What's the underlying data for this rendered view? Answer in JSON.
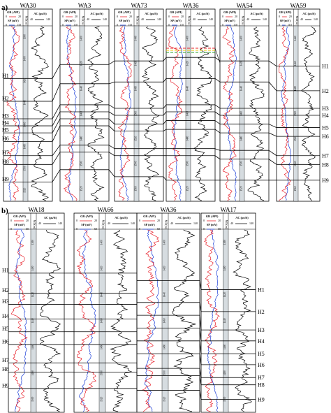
{
  "panels": [
    {
      "label": "a)",
      "header": {
        "gr": "GR (API)",
        "gr_range": [
          "0",
          "20"
        ],
        "sp": "SP (mV)",
        "sp_range": [
          "0",
          "110"
        ],
        "ac": "AC (μs/ft)",
        "ac_range": [
          "40",
          "140"
        ]
      },
      "wells": [
        {
          "name": "WA30",
          "depths": [
            "1380",
            "1400",
            "1420",
            "1440",
            "1460",
            "1480",
            "1500",
            "1520"
          ],
          "markers": [
            0.3,
            0.43,
            0.53,
            0.57,
            0.61,
            0.66,
            0.74,
            0.79,
            0.89
          ]
        },
        {
          "name": "WA3",
          "depths": [
            "1400",
            "1420",
            "1440",
            "1460",
            "1480",
            "1500",
            "1520"
          ],
          "markers": [
            0.22,
            0.33,
            0.45,
            0.49,
            0.53,
            0.57,
            0.68,
            0.72,
            0.82
          ]
        },
        {
          "name": "WA73",
          "depths": [
            "1440",
            "1460",
            "1480",
            "1500",
            "1520",
            "1540",
            "1560"
          ],
          "markers": [
            0.2,
            0.32,
            0.47,
            0.51,
            0.56,
            0.6,
            0.7,
            0.74,
            0.86
          ]
        },
        {
          "name": "WA36",
          "depths": [
            "1400",
            "1420",
            "1440",
            "1460",
            "1480",
            "1500",
            "1520"
          ],
          "markers": [
            0.18,
            0.3,
            0.45,
            0.49,
            0.54,
            0.59,
            0.7,
            0.74,
            0.88
          ]
        },
        {
          "name": "WA54",
          "depths": [
            "1400",
            "1420",
            "1440",
            "1460",
            "1480",
            "1500",
            "1520"
          ],
          "markers": [
            0.2,
            0.32,
            0.47,
            0.51,
            0.56,
            0.61,
            0.71,
            0.76,
            0.88
          ]
        },
        {
          "name": "WA59",
          "depths": [
            "1440",
            "1460",
            "1480",
            "1500",
            "1520",
            "1540",
            "1560"
          ],
          "markers": [
            0.23,
            0.37,
            0.47,
            0.51,
            0.58,
            0.63,
            0.74,
            0.79,
            0.88
          ]
        }
      ],
      "horizons": [
        "H1",
        "H2",
        "H3",
        "H4",
        "H5",
        "H6",
        "H7",
        "H8",
        "H9"
      ],
      "right_labels": [
        "H1",
        "H2",
        "H3",
        "H4",
        "H5",
        "H6",
        "H7",
        "H8",
        "H9"
      ]
    },
    {
      "label": "b)",
      "header": {
        "gr": "GR (API)",
        "gr_range": [
          "0",
          "20"
        ],
        "sp": "SP (mV)",
        "sp_range": [
          "0",
          "60"
        ],
        "ac": "AC (μs/ft)",
        "ac_range": [
          "40",
          "140"
        ]
      },
      "wells": [
        {
          "name": "WA18",
          "depths": [
            "1380",
            "1400",
            "1420",
            "1440",
            "1460",
            "1480",
            "1500"
          ],
          "markers": [
            0.24,
            0.35,
            0.41,
            0.49,
            0.56,
            0.63,
            0.73,
            0.78,
            0.87
          ]
        },
        {
          "name": "WA66",
          "depths": [
            "1400",
            "1420",
            "1440",
            "1460",
            "1480",
            "1500",
            "1520"
          ],
          "markers": [
            0.24,
            0.35,
            0.41,
            0.49,
            0.56,
            0.63,
            0.73,
            0.78,
            0.87
          ]
        },
        {
          "name": "WA36",
          "depths": [
            "1400",
            "1420",
            "1440",
            "1460",
            "1480",
            "1500",
            "1520"
          ],
          "markers": [
            0.28,
            0.4,
            0.47,
            0.54,
            0.61,
            0.68,
            0.76,
            0.8,
            0.88
          ]
        },
        {
          "name": "WA17",
          "depths": [
            "1380",
            "1400",
            "1420",
            "1440",
            "1460",
            "1480",
            "1500"
          ],
          "markers": [
            0.33,
            0.45,
            0.55,
            0.61,
            0.68,
            0.74,
            0.81,
            0.85,
            0.93
          ]
        }
      ],
      "horizons": [
        "H1",
        "H2",
        "H3",
        "H4",
        "H5",
        "H6",
        "H7",
        "H8",
        "H9"
      ],
      "right_labels": [
        "H1",
        "H2",
        "H3",
        "H4",
        "H5",
        "H6",
        "H7",
        "H8",
        "H9"
      ]
    }
  ],
  "colors": {
    "gr": "#e8202a",
    "sp": "#1c3fd8",
    "ac": "#000000",
    "depth_track": "#d6dce0",
    "highlight_red": "#e8202a",
    "highlight_yellow": "#f2c500",
    "highlight_green": "#2aa02a"
  }
}
